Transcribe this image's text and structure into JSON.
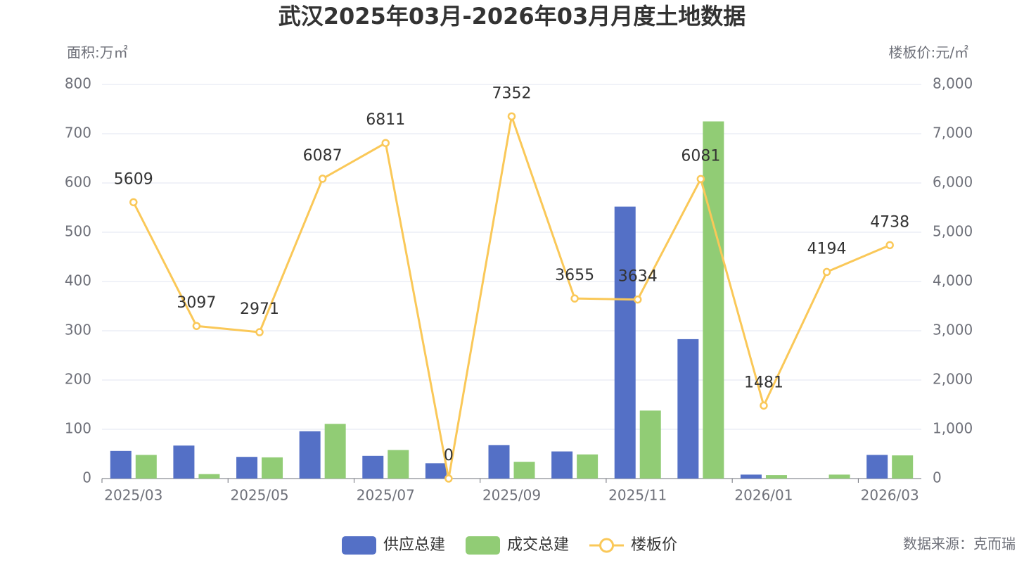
{
  "chart_data": {
    "type": "bar",
    "title": "武汉2025年03月-2026年03月月度土地数据",
    "y_label": "面积:万㎡",
    "y2_label": "楼板价:元/㎡",
    "source": "数据来源：克而瑞",
    "categories": [
      "2025/03",
      null,
      "2025/05",
      null,
      "2025/07",
      null,
      "2025/09",
      null,
      "2025/11",
      null,
      "2026/01",
      null,
      "2026/03"
    ],
    "series": [
      {
        "name": "供应总建",
        "type": "bar",
        "axis": "y",
        "color": "#5470c6",
        "values": [
          56,
          67,
          44,
          96,
          46,
          31,
          68,
          55,
          552,
          283,
          8,
          null,
          48
        ]
      },
      {
        "name": "成交总建",
        "type": "bar",
        "axis": "y",
        "color": "#91cc75",
        "values": [
          48,
          9,
          43,
          111,
          58,
          null,
          34,
          49,
          138,
          725,
          7,
          8,
          47
        ]
      },
      {
        "name": "楼板价",
        "type": "line",
        "axis": "y2",
        "color": "#fac858",
        "values": [
          5609,
          3097,
          2971,
          6087,
          6811,
          0,
          7352,
          3655,
          3634,
          6081,
          1481,
          4194,
          4738
        ]
      }
    ],
    "ylim": [
      0,
      800
    ],
    "yticks": [
      0,
      100,
      200,
      300,
      400,
      500,
      600,
      700,
      800
    ],
    "y2lim": [
      0,
      8000
    ],
    "y2ticks": [
      0,
      {
        "value": 1000,
        "label": "1,000"
      },
      {
        "value": 2000,
        "label": "2,000"
      },
      {
        "value": 3000,
        "label": "3,000"
      },
      {
        "value": 4000,
        "label": "4,000"
      },
      {
        "value": 5000,
        "label": "5,000"
      },
      {
        "value": 6000,
        "label": "6,000"
      },
      {
        "value": 7000,
        "label": "7,000"
      },
      {
        "value": 8000,
        "label": "8,000"
      }
    ],
    "grid": true
  }
}
